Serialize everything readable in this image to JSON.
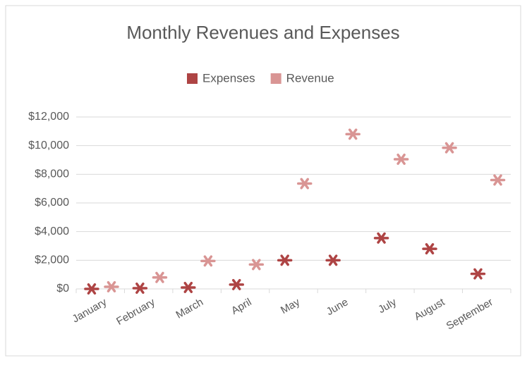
{
  "chart_data": {
    "type": "dot",
    "title": "Monthly Revenues and Expenses",
    "categories": [
      "January",
      "February",
      "March",
      "April",
      "May",
      "June",
      "July",
      "August",
      "September"
    ],
    "series": [
      {
        "name": "Expenses",
        "color": "#ae4444",
        "values": [
          0,
          50,
          100,
          300,
          2000,
          2000,
          3550,
          2800,
          1050
        ]
      },
      {
        "name": "Revenue",
        "color": "#d99594",
        "values": [
          150,
          800,
          1950,
          1700,
          7350,
          10800,
          9050,
          9850,
          7600
        ]
      }
    ],
    "ylim": [
      0,
      12000
    ],
    "yticks": [
      {
        "value": 0,
        "label": "$0"
      },
      {
        "value": 2000,
        "label": "$2,000"
      },
      {
        "value": 4000,
        "label": "$4,000"
      },
      {
        "value": 6000,
        "label": "$6,000"
      },
      {
        "value": 8000,
        "label": "$8,000"
      },
      {
        "value": 10000,
        "label": "$10,000"
      },
      {
        "value": 12000,
        "label": "$12,000"
      }
    ],
    "grid": true,
    "legend": "top"
  }
}
